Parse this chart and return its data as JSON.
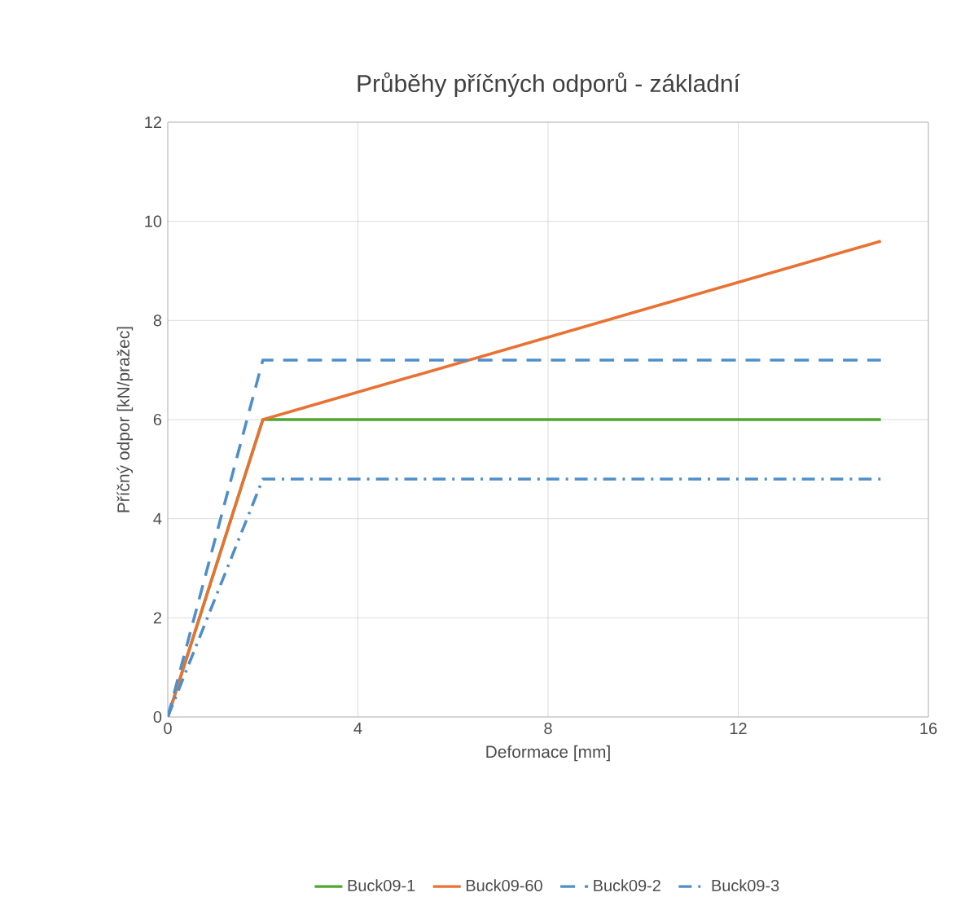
{
  "chart_data": {
    "type": "line",
    "title": "Průběhy příčných odporů - základní",
    "xlabel": "Deformace [mm]",
    "ylabel": "Příčný odpor  [kN/pražec]",
    "xlim": [
      0,
      16
    ],
    "ylim": [
      0,
      12
    ],
    "xticks": [
      0,
      4,
      8,
      12,
      16
    ],
    "yticks": [
      0,
      2,
      4,
      6,
      8,
      10,
      12
    ],
    "grid": true,
    "legend": "bottom",
    "marker": "none",
    "series": [
      {
        "name": "Buck09-1",
        "color": "#4ea72e",
        "line_style": "solid",
        "x": [
          0,
          2,
          15
        ],
        "values": [
          0,
          6,
          6
        ]
      },
      {
        "name": "Buck09-60",
        "color": "#e97132",
        "line_style": "solid",
        "x": [
          0,
          2,
          15
        ],
        "values": [
          0,
          6,
          9.6
        ]
      },
      {
        "name": "Buck09-2",
        "color": "#4f8fc9",
        "line_style": "dashed",
        "x": [
          0,
          2,
          15
        ],
        "values": [
          0,
          7.2,
          7.2
        ]
      },
      {
        "name": "Buck09-3",
        "color": "#4f8fc9",
        "line_style": "dashdot",
        "x": [
          0,
          2,
          15
        ],
        "values": [
          0,
          4.8,
          4.8
        ]
      }
    ]
  }
}
